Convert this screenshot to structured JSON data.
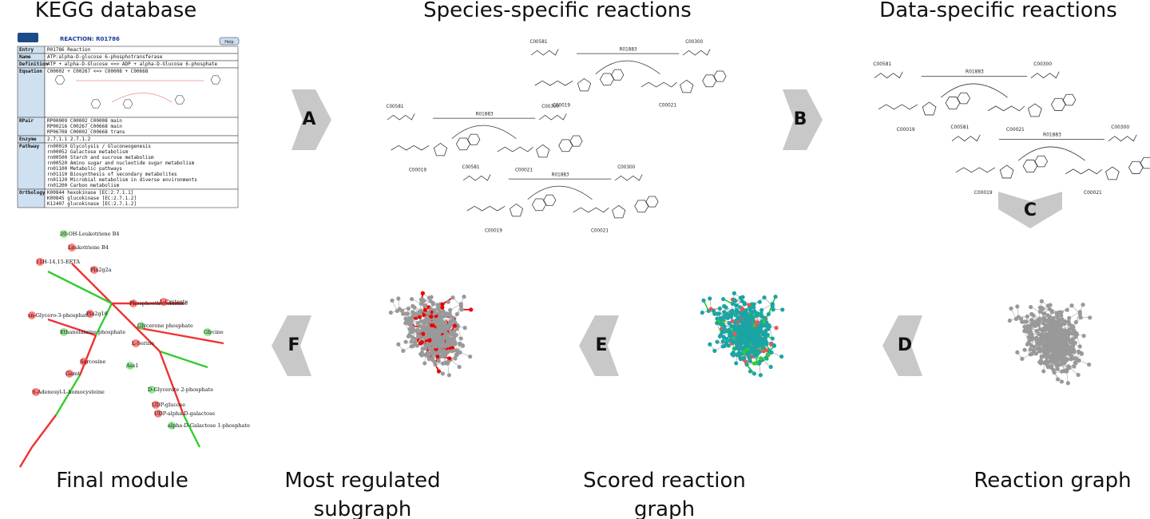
{
  "titles": {
    "kegg": "KEGG database",
    "species": "Species-specific reactions",
    "data": "Data-specific reactions",
    "graph": "Reaction graph",
    "scored": "Scored reaction graph",
    "subgraph": "Most regulated subgraph",
    "module": "Final module"
  },
  "arrows": [
    "A",
    "B",
    "C",
    "D",
    "E",
    "F"
  ],
  "kegg": {
    "header": "REACTION: R01786",
    "help": "Help",
    "rows": [
      {
        "label": "Entry",
        "lines": [
          "R01786                 Reaction"
        ]
      },
      {
        "label": "Name",
        "lines": [
          "ATP:alpha-D-glucose 6-phosphotransferase"
        ]
      },
      {
        "label": "Definition",
        "lines": [
          "ATP + alpha-D-Glucose <=> ADP + alpha-D-Glucose 6-phosphate"
        ]
      },
      {
        "label": "Equation",
        "lines": [
          "C00002 + C00267 <=> C00008 + C00668"
        ]
      },
      {
        "label": "RPair",
        "lines": [
          "RP00009  C00002_C00008 main",
          "RP00216  C00267_C00668 main",
          "RP06708  C00002_C00668 trans"
        ]
      },
      {
        "label": "Enzyme",
        "lines": [
          "2.7.1.1          2.7.1.2"
        ]
      },
      {
        "label": "Pathway",
        "lines": [
          "rn00010  Glycolysis / Gluconeogenesis",
          "rn00052  Galactose metabolism",
          "rn00500  Starch and sucrose metabolism",
          "rn00520  Amino sugar and nucleotide sugar metabolism",
          "rn01100  Metabolic pathways",
          "rn01110  Biosynthesis of secondary metabolites",
          "rn01120  Microbial metabolism in diverse environments",
          "rn01200  Carbon metabolism"
        ]
      },
      {
        "label": "Orthology",
        "lines": [
          "K00844  hexokinase [EC:2.7.1.1]",
          "K00845  glucokinase [EC:2.7.1.2]",
          "K12407  glucokinase [EC:2.7.1.2]"
        ]
      }
    ]
  },
  "species_reactions": [
    {
      "left_top": "C00581",
      "right_top": "C00300",
      "enzyme": "R01883",
      "left_bottom": "C00019",
      "right_bottom": "C00021"
    },
    {
      "left_top": "C00581",
      "right_top": "C00300",
      "enzyme": "R01883",
      "left_bottom": "C00019",
      "right_bottom": "C00021"
    },
    {
      "left_top": "C00581",
      "right_top": "C00300",
      "enzyme": "R01883",
      "left_bottom": "C00019",
      "right_bottom": "C00021"
    }
  ],
  "data_reactions": [
    {
      "left_top": "C00581",
      "right_top": "C00300",
      "enzyme": "R01883",
      "left_bottom": "C00019",
      "right_bottom": "C00021"
    },
    {
      "left_top": "C00581",
      "right_top": "C00300",
      "enzyme": "R01883",
      "left_bottom": "C00019",
      "right_bottom": "C00021"
    }
  ],
  "module_labels": [
    "20-OH-Leukotriene B4",
    "Leukotriene B4",
    "11H-14,15-EETA",
    "Ethanolamine phosphate",
    "sn-Glycero-3-phosphate",
    "Phosphoethanolamine",
    "Glycerone phosphate",
    "L-Cysteate",
    "Sarcosine",
    "Glycine",
    "L-Serine",
    "S-Adenosyl-L-homocysteine",
    "D-Glycerate 2-phosphate",
    "UDP-glucose",
    "UDP-alpha-D-galactose",
    "alpha-D-Galactose 1-phosphate",
    "Pla2g2a",
    "Pla2g16",
    "Ass1",
    "Gamt"
  ]
}
